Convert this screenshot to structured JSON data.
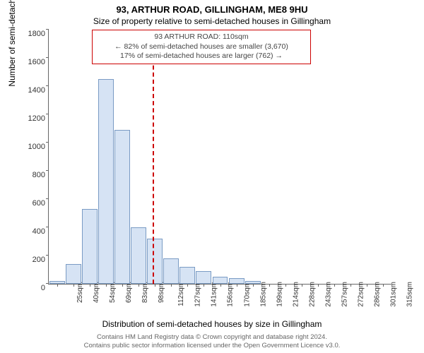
{
  "title": "93, ARTHUR ROAD, GILLINGHAM, ME8 9HU",
  "subtitle": "Size of property relative to semi-detached houses in Gillingham",
  "annotation": {
    "line1": "93 ARTHUR ROAD: 110sqm",
    "line2": "← 82% of semi-detached houses are smaller (3,670)",
    "line3": "17% of semi-detached houses are larger (762) →",
    "border_color": "#cc0000"
  },
  "chart": {
    "type": "histogram",
    "ylabel": "Number of semi-detached properties",
    "xlabel": "Distribution of semi-detached houses by size in Gillingham",
    "ylim": [
      0,
      1800
    ],
    "ytick_step": 200,
    "bar_fill": "#d6e3f4",
    "bar_border": "#7a9bc4",
    "background_color": "#ffffff",
    "axis_color": "#666666",
    "vline_x": 110,
    "vline_color": "#cc0000",
    "categories": [
      "25sqm",
      "40sqm",
      "54sqm",
      "69sqm",
      "83sqm",
      "98sqm",
      "112sqm",
      "127sqm",
      "141sqm",
      "156sqm",
      "170sqm",
      "185sqm",
      "199sqm",
      "214sqm",
      "228sqm",
      "243sqm",
      "257sqm",
      "272sqm",
      "286sqm",
      "301sqm",
      "315sqm"
    ],
    "values": [
      20,
      140,
      530,
      1450,
      1090,
      400,
      320,
      180,
      120,
      90,
      50,
      40,
      20,
      0,
      0,
      0,
      0,
      0,
      0,
      0,
      0
    ],
    "title_fontsize": 13,
    "subtitle_fontsize": 12,
    "label_fontsize": 12,
    "tick_fontsize": 11
  },
  "footer": {
    "line1": "Contains HM Land Registry data © Crown copyright and database right 2024.",
    "line2": "Contains public sector information licensed under the Open Government Licence v3.0."
  }
}
